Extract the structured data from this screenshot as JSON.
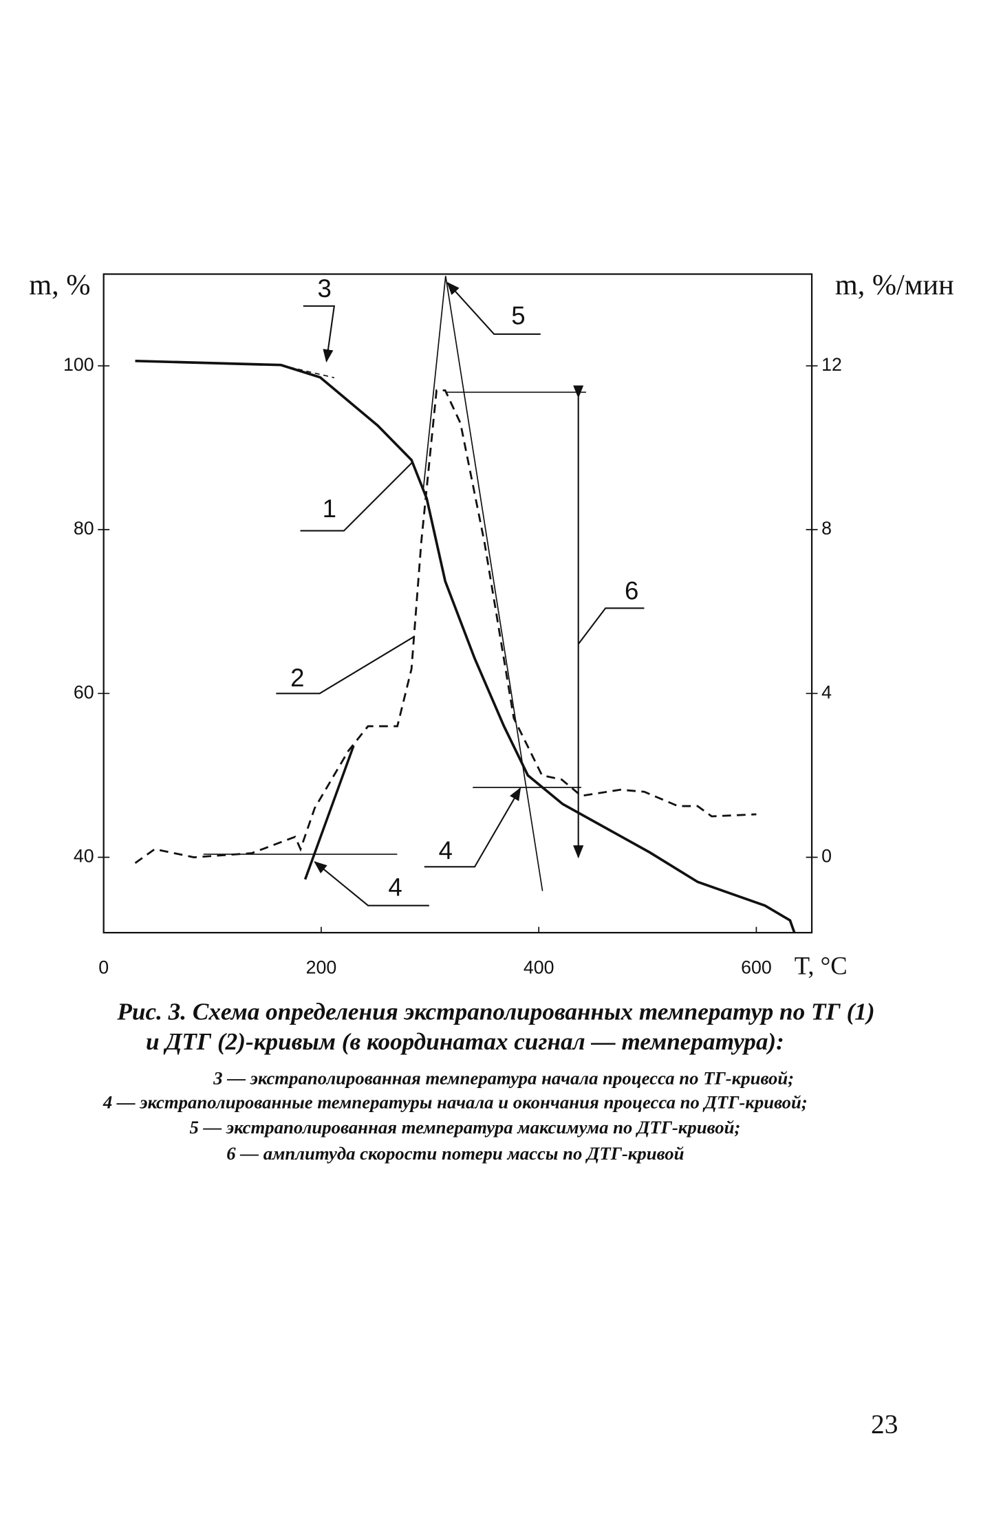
{
  "chart_data": {
    "type": "line",
    "x_label": "T, °C",
    "y_label": "m, %",
    "y2_label": "m, %/мин",
    "xlim": [
      0,
      651
    ],
    "xticks": [
      0,
      200,
      400,
      600
    ],
    "ylim": [
      30.8,
      111.2
    ],
    "yticks": [
      40,
      60,
      80,
      100
    ],
    "y2lim": [
      -1.84,
      14.24
    ],
    "y2ticks": [
      0,
      4,
      8,
      12
    ],
    "series": [
      {
        "color": "#111111",
        "line_style": "solid",
        "x": [
          29,
          163,
          199,
          252,
          283,
          297,
          314,
          341,
          368,
          390,
          422,
          502,
          546,
          608,
          631,
          635
        ],
        "values": [
          100.6,
          100.1,
          98.6,
          92.7,
          88.5,
          83.8,
          73.7,
          64.3,
          56,
          50,
          46.5,
          40.6,
          37,
          34.1,
          32.3,
          30.8
        ]
      },
      {
        "color": "#111111",
        "line_style": "dashed",
        "axis": "y2",
        "x": [
          29,
          47,
          83,
          136,
          176,
          181,
          194,
          225,
          243,
          270,
          283,
          292,
          306,
          314,
          328,
          350,
          377,
          403,
          421,
          439,
          475,
          497,
          528,
          546,
          559,
          600
        ],
        "values": [
          -0.14,
          0.2,
          0,
          0.1,
          0.5,
          0.2,
          1.2,
          2.6,
          3.2,
          3.2,
          4.6,
          7.7,
          11.4,
          11.4,
          10.6,
          7.7,
          3.4,
          2.0,
          1.9,
          1.5,
          1.65,
          1.6,
          1.25,
          1.25,
          1.0,
          1.05
        ]
      }
    ],
    "annotations": [
      "3",
      "5",
      "1",
      "6",
      "2",
      "4",
      "4"
    ]
  },
  "caption": {
    "title_lines": [
      "Рис. 3. Схема определения экстраполированных температур по ТГ (1)",
      "и ДТГ (2)-кривым (в координатах сигнал — температура):"
    ],
    "legend_lines": [
      "3 — экстраполированная температура начала процесса по ТГ-кривой;",
      "4 — экстраполированные температуры начала и окончания процесса по ДТГ-кривой;",
      "5 — экстраполированная температура максимума по ДТГ-кривой;",
      "6 — амплитуда скорости потери массы по ДТГ-кривой"
    ]
  },
  "page_number": "23"
}
